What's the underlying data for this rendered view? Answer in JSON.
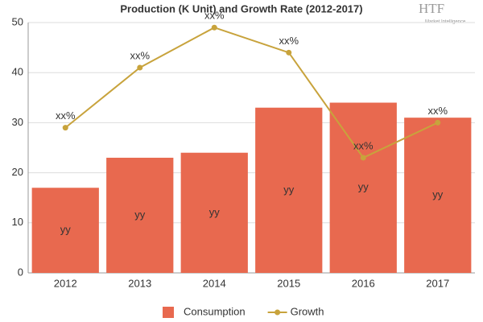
{
  "chart_data": {
    "type": "bar",
    "title": "Production (K Unit) and Growth Rate (2012-2017)",
    "logo": {
      "text": "HTF",
      "subtext": "Market Intelligence"
    },
    "categories": [
      "2012",
      "2013",
      "2014",
      "2015",
      "2016",
      "2017"
    ],
    "series": [
      {
        "name": "Consumption",
        "type": "bar",
        "color": "#e8694f",
        "values": [
          17,
          23,
          24,
          33,
          34,
          31
        ],
        "value_labels": [
          "yy",
          "yy",
          "yy",
          "yy",
          "yy",
          "yy"
        ]
      },
      {
        "name": "Growth",
        "type": "line",
        "color": "#c8a33c",
        "values": [
          29,
          41,
          49,
          44,
          23,
          30
        ],
        "value_labels": [
          "xx%",
          "xx%",
          "xx%",
          "xx%",
          "xx%",
          "xx%"
        ]
      }
    ],
    "ylim": [
      0,
      50
    ],
    "yticks": [
      0,
      10,
      20,
      30,
      40,
      50
    ],
    "grid": true,
    "legend": "bottom"
  }
}
